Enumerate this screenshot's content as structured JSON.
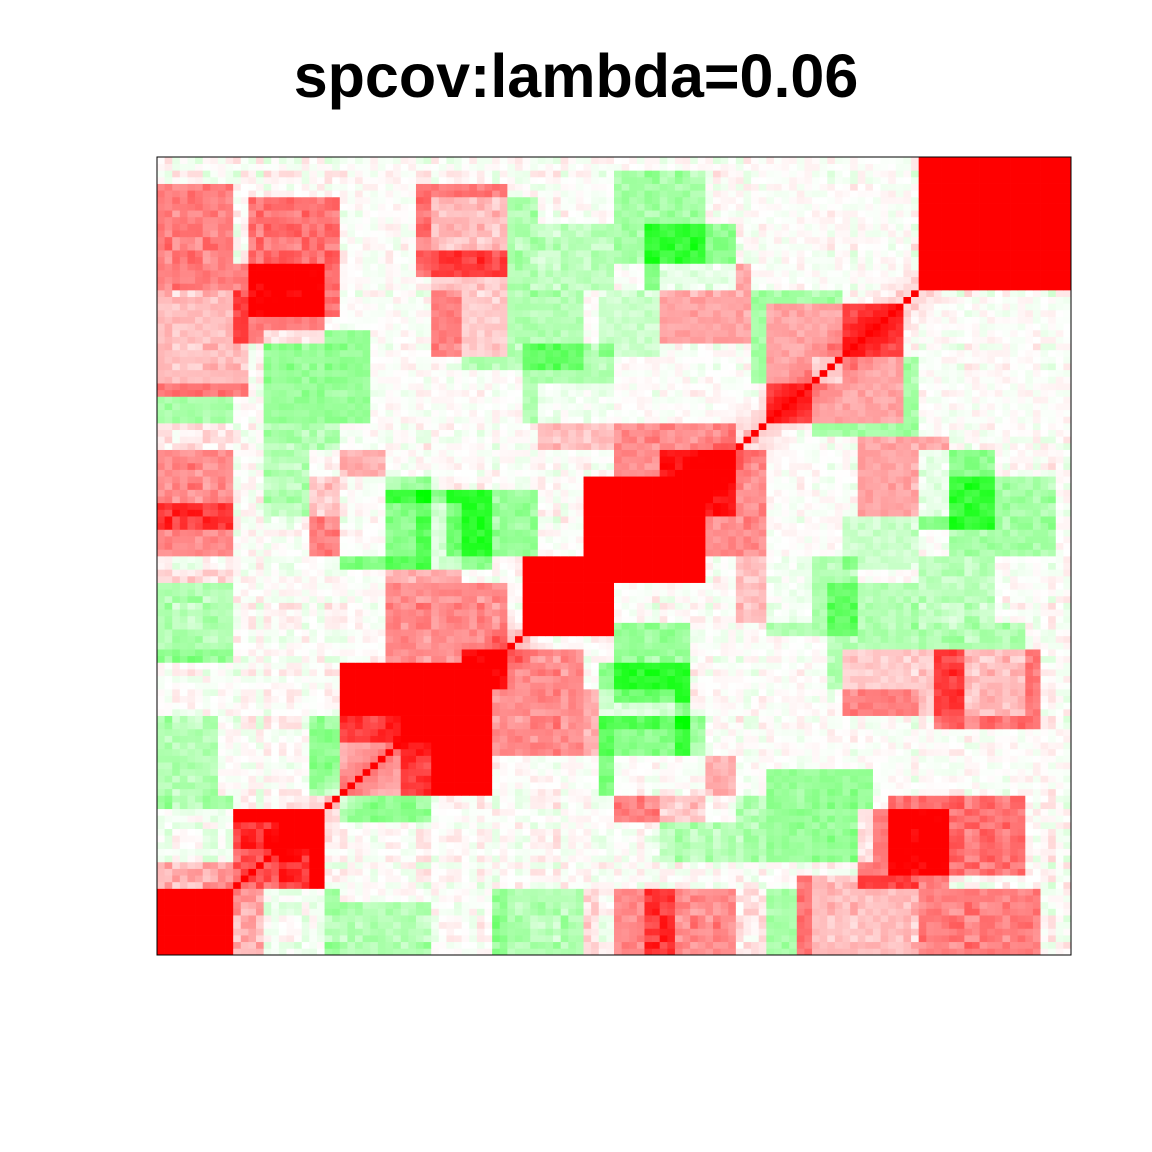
{
  "chart_data": {
    "type": "heatmap",
    "title": "spcov:lambda=0.06",
    "xlabel": "",
    "ylabel": "",
    "matrix_size": 120,
    "diagonal_value": 1.0,
    "value_range": [
      -1,
      1
    ],
    "grid": false,
    "axes_ticks": false,
    "colors": {
      "positive": "#ff0000",
      "zero": "#ffffff",
      "negative": "#00ff00",
      "frame": "#000000"
    },
    "blocks": [
      {
        "rows": [
          0,
          10
        ],
        "cols": [
          0,
          10
        ],
        "value": 0.7
      },
      {
        "rows": [
          10,
          22
        ],
        "cols": [
          10,
          22
        ],
        "value": 0.55
      },
      {
        "rows": [
          0,
          10
        ],
        "cols": [
          10,
          22
        ],
        "value": 0.3
      },
      {
        "rows": [
          24,
          44
        ],
        "cols": [
          24,
          44
        ],
        "value": 0.6
      },
      {
        "rows": [
          30,
          46
        ],
        "cols": [
          40,
          56
        ],
        "value": 0.45
      },
      {
        "rows": [
          48,
          60
        ],
        "cols": [
          48,
          60
        ],
        "value": 0.55
      },
      {
        "rows": [
          56,
          72
        ],
        "cols": [
          56,
          72
        ],
        "value": 0.65
      },
      {
        "rows": [
          60,
          76
        ],
        "cols": [
          66,
          80
        ],
        "value": 0.45
      },
      {
        "rows": [
          80,
          98
        ],
        "cols": [
          80,
          98
        ],
        "value": 0.35
      },
      {
        "rows": [
          100,
          120
        ],
        "cols": [
          100,
          120
        ],
        "value": 0.6
      },
      {
        "rows": [
          104,
          118
        ],
        "cols": [
          108,
          118
        ],
        "value": 0.75
      },
      {
        "rows": [
          0,
          10
        ],
        "cols": [
          60,
          80
        ],
        "value": 0.45
      },
      {
        "rows": [
          0,
          10
        ],
        "cols": [
          100,
          116
        ],
        "value": 0.5
      },
      {
        "rows": [
          12,
          24
        ],
        "cols": [
          96,
          114
        ],
        "value": 0.55
      },
      {
        "rows": [
          34,
          46
        ],
        "cols": [
          102,
          116
        ],
        "value": 0.55
      },
      {
        "rows": [
          84,
          100
        ],
        "cols": [
          0,
          12
        ],
        "value": 0.55
      },
      {
        "rows": [
          64,
          76
        ],
        "cols": [
          0,
          10
        ],
        "value": 0.35
      },
      {
        "rows": [
          92,
          104
        ],
        "cols": [
          10,
          22
        ],
        "value": 0.5
      },
      {
        "rows": [
          90,
          106
        ],
        "cols": [
          36,
          46
        ],
        "value": 0.5
      },
      {
        "rows": [
          92,
          104
        ],
        "cols": [
          66,
          78
        ],
        "value": 0.35
      },
      {
        "rows": [
          30,
          40
        ],
        "cols": [
          56,
          68
        ],
        "value": 0.3
      },
      {
        "rows": [
          20,
          30
        ],
        "cols": [
          60,
          76
        ],
        "value": 0.3
      },
      {
        "rows": [
          50,
          60
        ],
        "cols": [
          76,
          86
        ],
        "value": 0.25
      },
      {
        "rows": [
          60,
          72
        ],
        "cols": [
          20,
          34
        ],
        "value": 0.2
      },
      {
        "rows": [
          46,
          58
        ],
        "cols": [
          0,
          10
        ],
        "value": 0.15
      },
      {
        "rows": [
          20,
          32
        ],
        "cols": [
          24,
          36
        ],
        "value": -0.45
      },
      {
        "rows": [
          10,
          16
        ],
        "cols": [
          10,
          20
        ],
        "value": -0.3
      },
      {
        "rows": [
          58,
          72
        ],
        "cols": [
          24,
          36
        ],
        "value": -0.5
      },
      {
        "rows": [
          60,
          70
        ],
        "cols": [
          38,
          50
        ],
        "value": -0.4
      },
      {
        "rows": [
          44,
          56
        ],
        "cols": [
          0,
          10
        ],
        "value": -0.45
      },
      {
        "rows": [
          68,
          84
        ],
        "cols": [
          0,
          10
        ],
        "value": -0.35
      },
      {
        "rows": [
          66,
          80
        ],
        "cols": [
          14,
          24
        ],
        "value": -0.3
      },
      {
        "rows": [
          30,
          44
        ],
        "cols": [
          58,
          70
        ],
        "value": -0.45
      },
      {
        "rows": [
          0,
          10
        ],
        "cols": [
          14,
          24
        ],
        "value": -0.35
      },
      {
        "rows": [
          0,
          12
        ],
        "cols": [
          86,
          100
        ],
        "value": -0.3
      },
      {
        "rows": [
          14,
          28
        ],
        "cols": [
          80,
          94
        ],
        "value": -0.4
      },
      {
        "rows": [
          64,
          76
        ],
        "cols": [
          100,
          110
        ],
        "value": -0.45
      },
      {
        "rows": [
          100,
          114
        ],
        "cols": [
          36,
          50
        ],
        "value": -0.3
      },
      {
        "rows": [
          86,
          100
        ],
        "cols": [
          78,
          90
        ],
        "value": -0.35
      },
      {
        "rows": [
          40,
          56
        ],
        "cols": [
          88,
          100
        ],
        "value": -0.3
      },
      {
        "rows": [
          104,
          118
        ],
        "cols": [
          60,
          72
        ],
        "value": -0.35
      },
      {
        "rows": [
          50,
          60
        ],
        "cols": [
          100,
          110
        ],
        "value": -0.25
      },
      {
        "rows": [
          80,
          92
        ],
        "cols": [
          48,
          60
        ],
        "value": -0.3
      },
      {
        "rows": [
          24,
          36
        ],
        "cols": [
          0,
          8
        ],
        "value": -0.3
      },
      {
        "rows": [
          90,
          100
        ],
        "cols": [
          58,
          66
        ],
        "value": -0.2
      }
    ]
  }
}
